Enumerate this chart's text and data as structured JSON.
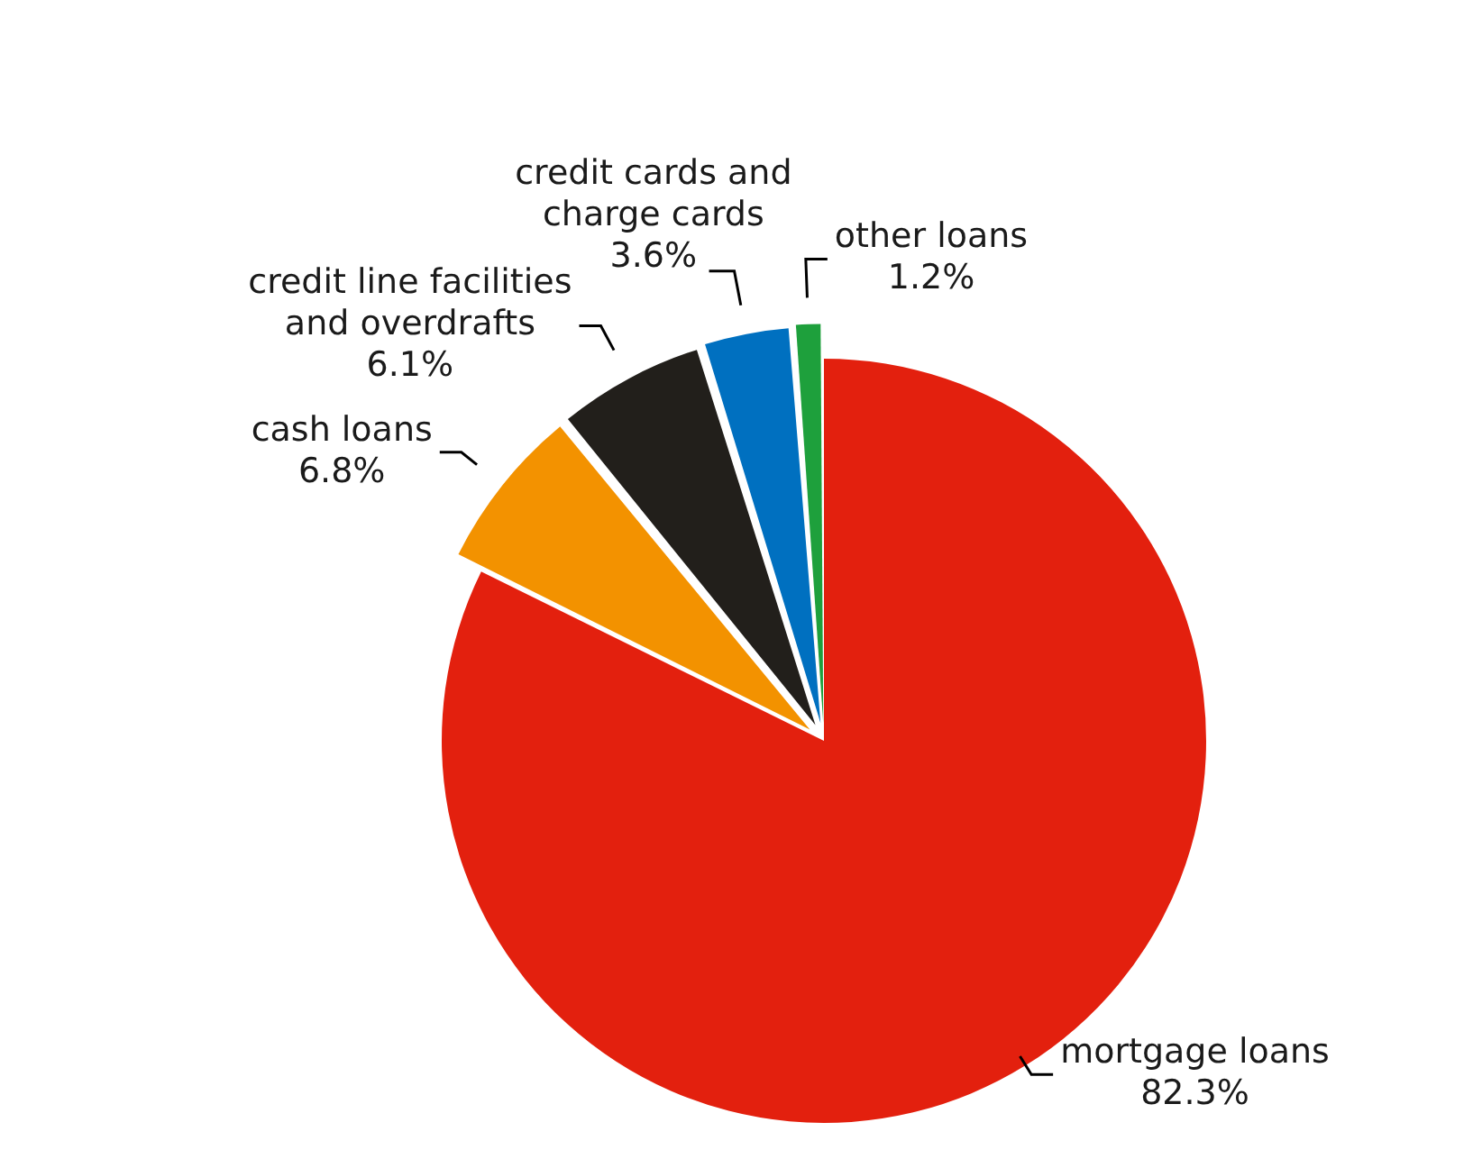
{
  "chart_data": {
    "type": "pie",
    "categories": [
      "mortgage loans",
      "cash loans",
      "credit line facilities and overdrafts",
      "credit cards and charge cards",
      "other loans"
    ],
    "values": [
      82.3,
      6.8,
      6.1,
      3.6,
      1.2
    ],
    "value_labels": [
      "82.3%",
      "6.8%",
      "6.1%",
      "3.6%",
      "1.2%"
    ],
    "colors": [
      "#e3200e",
      "#f39200",
      "#221f1b",
      "#0070c0",
      "#1ea03c"
    ],
    "legend": false
  }
}
